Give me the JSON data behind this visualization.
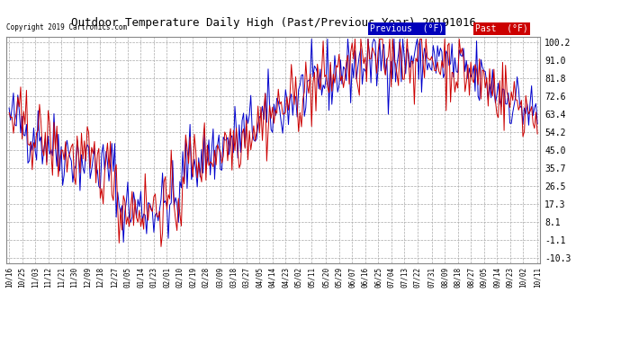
{
  "title": "Outdoor Temperature Daily High (Past/Previous Year) 20191016",
  "copyright": "Copyright 2019 Cartronics.com",
  "legend_labels": [
    "Previous  (°F)",
    "Past  (°F)"
  ],
  "legend_bg_colors": [
    "#0000bb",
    "#cc0000"
  ],
  "line_color_prev": "#0000cc",
  "line_color_past": "#cc0000",
  "yticks": [
    100.2,
    91.0,
    81.8,
    72.6,
    63.4,
    54.2,
    45.0,
    35.7,
    26.5,
    17.3,
    8.1,
    -1.1,
    -10.3
  ],
  "ylim": [
    -13,
    103
  ],
  "background_color": "#ffffff",
  "plot_bg_color": "#ffffff",
  "grid_color": "#aaaaaa",
  "xtick_dates": [
    "10/16",
    "10/25",
    "11/03",
    "11/12",
    "11/21",
    "11/30",
    "12/09",
    "12/18",
    "12/27",
    "01/05",
    "01/14",
    "01/23",
    "02/01",
    "02/10",
    "02/19",
    "02/28",
    "03/09",
    "03/18",
    "03/27",
    "04/05",
    "04/14",
    "04/23",
    "05/02",
    "05/11",
    "05/20",
    "05/29",
    "06/07",
    "06/16",
    "06/25",
    "07/04",
    "07/13",
    "07/22",
    "07/31",
    "08/09",
    "08/18",
    "08/27",
    "09/05",
    "09/14",
    "09/23",
    "10/02",
    "10/11"
  ]
}
